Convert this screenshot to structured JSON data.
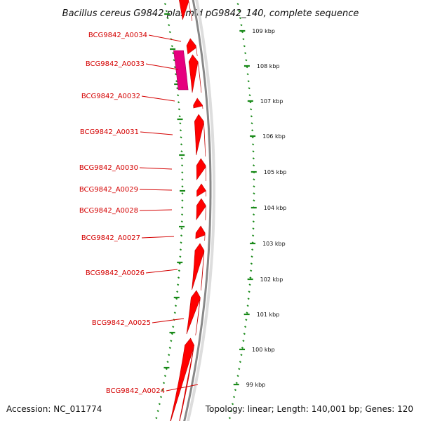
{
  "title": "Bacillus cereus G9842 plasmid pG9842_140, complete sequence",
  "footer": {
    "accession_label": "Accession: NC_011774",
    "summary_label": "Topology: linear; Length: 140,001 bp; Genes: 120"
  },
  "colors": {
    "gene": "#ff0000",
    "gene_highlight": "#e6007e",
    "backbone": "#888888",
    "ticks": "#1a8a1a",
    "label": "#d40000"
  },
  "scale": {
    "ticks": [
      {
        "kbp": 109,
        "label": "109 kbp"
      },
      {
        "kbp": 108,
        "label": "108 kbp"
      },
      {
        "kbp": 107,
        "label": "107 kbp"
      },
      {
        "kbp": 106,
        "label": "106 kbp"
      },
      {
        "kbp": 105,
        "label": "105 kbp"
      },
      {
        "kbp": 104,
        "label": "104 kbp"
      },
      {
        "kbp": 103,
        "label": "103 kbp"
      },
      {
        "kbp": 102,
        "label": "102 kbp"
      },
      {
        "kbp": 101,
        "label": "101 kbp"
      },
      {
        "kbp": 100,
        "label": "100 kbp"
      },
      {
        "kbp": 99,
        "label": "99 kbp"
      }
    ]
  },
  "genes": [
    {
      "label": "BCG9842_A0034"
    },
    {
      "label": "BCG9842_A0033"
    },
    {
      "label": "BCG9842_A0032"
    },
    {
      "label": "BCG9842_A0031"
    },
    {
      "label": "BCG9842_A0030"
    },
    {
      "label": "BCG9842_A0029"
    },
    {
      "label": "BCG9842_A0028"
    },
    {
      "label": "BCG9842_A0027"
    },
    {
      "label": "BCG9842_A0026"
    },
    {
      "label": "BCG9842_A0025"
    },
    {
      "label": "BCG9842_A0024"
    }
  ]
}
